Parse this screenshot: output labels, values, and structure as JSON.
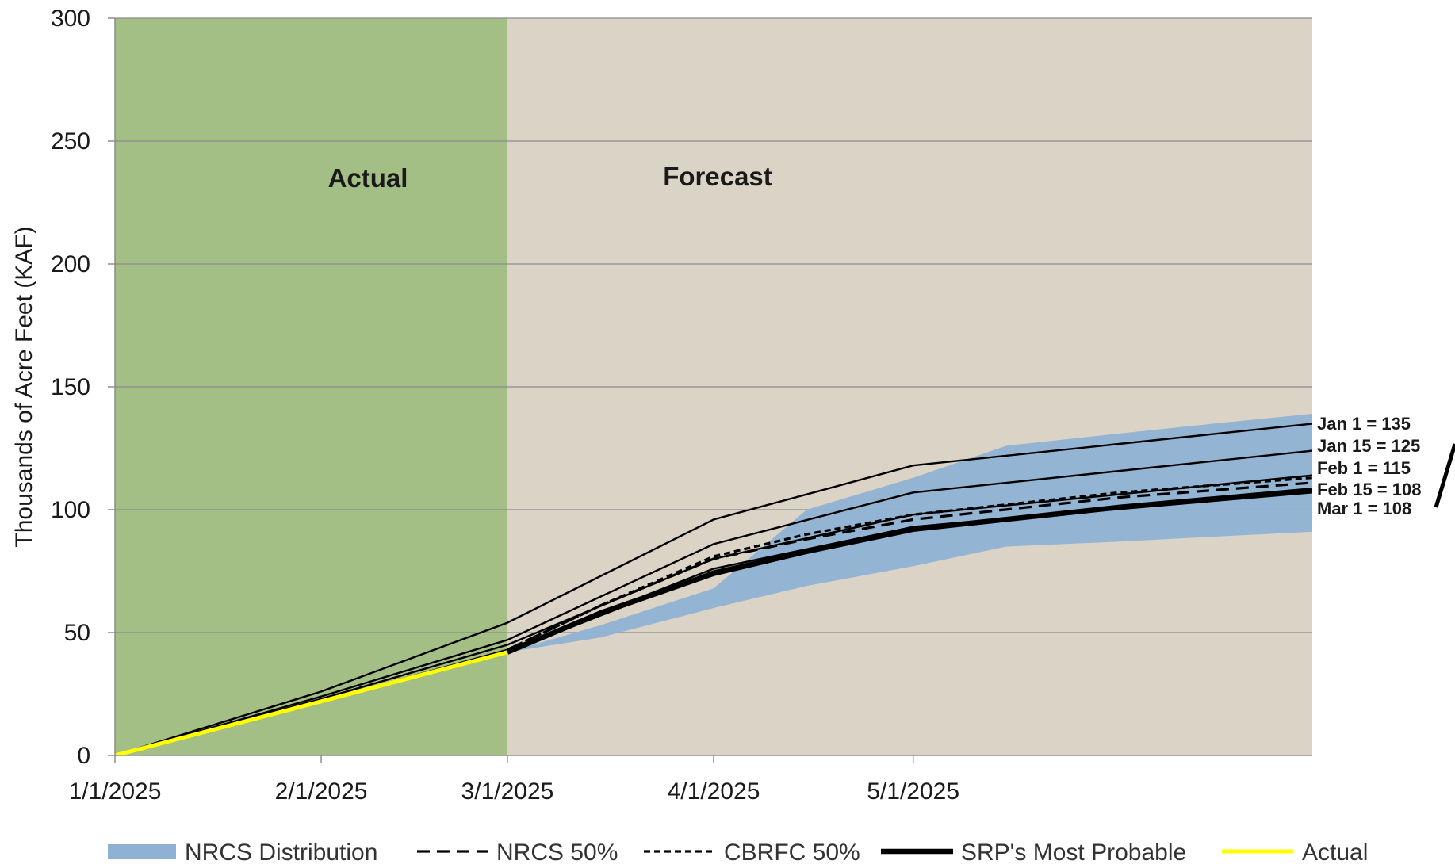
{
  "chart_data": {
    "type": "area",
    "ylabel": "Thousands of Acre Feet (KAF)",
    "xlabel": "",
    "title": "",
    "ylim": [
      0,
      300
    ],
    "yticks": [
      0,
      50,
      100,
      150,
      200,
      250,
      300
    ],
    "xlim": [
      "2025-01-01",
      "2025-06-30"
    ],
    "xticks": [
      "1/1/2025",
      "2/1/2025",
      "3/1/2025",
      "4/1/2025",
      "5/1/2025"
    ],
    "xtick_dates": [
      "2025-01-01",
      "2025-02-01",
      "2025-03-01",
      "2025-04-01",
      "2025-05-01"
    ],
    "grid": true,
    "legend_position": "bottom",
    "regions": [
      {
        "label": "Actual",
        "start": "2025-01-01",
        "end": "2025-03-01",
        "color": "#a3bf86"
      },
      {
        "label": "Forecast",
        "start": "2025-03-01",
        "end": "2025-06-30",
        "color": "#dbd3c5"
      }
    ],
    "band": {
      "name": "NRCS Distribution",
      "color": "#8fb2d4",
      "x": [
        "2025-03-01",
        "2025-03-15",
        "2025-04-01",
        "2025-04-15",
        "2025-05-01",
        "2025-05-15",
        "2025-06-01",
        "2025-06-15",
        "2025-06-30"
      ],
      "upper": [
        42,
        53,
        68,
        100,
        113,
        126,
        131,
        135,
        139
      ],
      "lower": [
        42,
        48,
        60,
        69,
        77,
        85,
        87,
        89,
        91
      ]
    },
    "series": [
      {
        "name": "NRCS 50%",
        "style": "dashed",
        "color": "#000000",
        "x": [
          "2025-03-01",
          "2025-03-15",
          "2025-04-01",
          "2025-04-15",
          "2025-05-01",
          "2025-06-01",
          "2025-06-30"
        ],
        "y": [
          43,
          61,
          80,
          88,
          96,
          105,
          111
        ]
      },
      {
        "name": "CBRFC 50%",
        "style": "dotted",
        "color": "#000000",
        "x": [
          "2025-03-01",
          "2025-03-15",
          "2025-04-01",
          "2025-04-15",
          "2025-05-01",
          "2025-06-01",
          "2025-06-30"
        ],
        "y": [
          43,
          61,
          81,
          90,
          98,
          107,
          113
        ]
      },
      {
        "name": "SRP's Most Probable",
        "style": "thick",
        "color": "#000000",
        "x": [
          "2025-03-01",
          "2025-03-15",
          "2025-04-01",
          "2025-04-15",
          "2025-05-01",
          "2025-06-01",
          "2025-06-30"
        ],
        "y": [
          42,
          58,
          74,
          83,
          92,
          101,
          108
        ]
      },
      {
        "name": "Actual",
        "style": "solid",
        "color": "#ffff00",
        "x": [
          "2025-01-01",
          "2025-02-01",
          "2025-03-01"
        ],
        "y": [
          0,
          22,
          42
        ]
      }
    ],
    "forecast_lines": [
      {
        "label": "Jan 1 = 135",
        "x": [
          "2025-01-01",
          "2025-02-01",
          "2025-03-01",
          "2025-04-01",
          "2025-05-01",
          "2025-06-30"
        ],
        "y": [
          0,
          26,
          54,
          96,
          118,
          135
        ]
      },
      {
        "label": "Jan 15 = 125",
        "x": [
          "2025-01-01",
          "2025-02-01",
          "2025-03-01",
          "2025-04-01",
          "2025-05-01",
          "2025-06-30"
        ],
        "y": [
          0,
          24,
          47,
          86,
          107,
          124
        ]
      },
      {
        "label": "Feb 1 = 115",
        "x": [
          "2025-01-01",
          "2025-02-01",
          "2025-03-01",
          "2025-04-01",
          "2025-05-01",
          "2025-06-30"
        ],
        "y": [
          0,
          23,
          45,
          80,
          98,
          114
        ]
      },
      {
        "label": "Feb 15 = 108",
        "x": [
          "2025-01-01",
          "2025-02-01",
          "2025-03-01",
          "2025-04-01",
          "2025-05-01",
          "2025-06-30"
        ],
        "y": [
          0,
          22,
          43,
          76,
          93,
          108
        ]
      },
      {
        "label": "Mar 1 = 108",
        "x": [
          "2025-03-01",
          "2025-04-01",
          "2025-05-01",
          "2025-06-30"
        ],
        "y": [
          42,
          75,
          93,
          107
        ]
      }
    ],
    "annotations": [
      "Actual",
      "Forecast"
    ]
  }
}
